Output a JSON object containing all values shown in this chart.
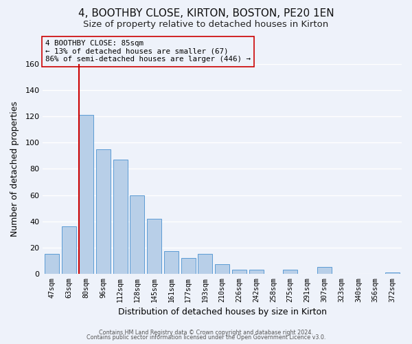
{
  "title": "4, BOOTHBY CLOSE, KIRTON, BOSTON, PE20 1EN",
  "subtitle": "Size of property relative to detached houses in Kirton",
  "xlabel": "Distribution of detached houses by size in Kirton",
  "ylabel": "Number of detached properties",
  "categories": [
    "47sqm",
    "63sqm",
    "80sqm",
    "96sqm",
    "112sqm",
    "128sqm",
    "145sqm",
    "161sqm",
    "177sqm",
    "193sqm",
    "210sqm",
    "226sqm",
    "242sqm",
    "258sqm",
    "275sqm",
    "291sqm",
    "307sqm",
    "323sqm",
    "340sqm",
    "356sqm",
    "372sqm"
  ],
  "values": [
    15,
    36,
    121,
    95,
    87,
    60,
    42,
    17,
    12,
    15,
    7,
    3,
    3,
    0,
    3,
    0,
    5,
    0,
    0,
    0,
    1
  ],
  "bar_color": "#b8cfe8",
  "bar_edge_color": "#5b9bd5",
  "highlight_index": 2,
  "highlight_color": "#cc0000",
  "ylim": [
    0,
    160
  ],
  "yticks": [
    0,
    20,
    40,
    60,
    80,
    100,
    120,
    140,
    160
  ],
  "annotation_text": "4 BOOTHBY CLOSE: 85sqm\n← 13% of detached houses are smaller (67)\n86% of semi-detached houses are larger (446) →",
  "annotation_box_edge": "#cc0000",
  "footer_line1": "Contains HM Land Registry data © Crown copyright and database right 2024.",
  "footer_line2": "Contains public sector information licensed under the Open Government Licence v3.0.",
  "background_color": "#eef2fa",
  "grid_color": "#ffffff",
  "title_fontsize": 11,
  "subtitle_fontsize": 9.5,
  "annotation_fontsize": 7.8
}
